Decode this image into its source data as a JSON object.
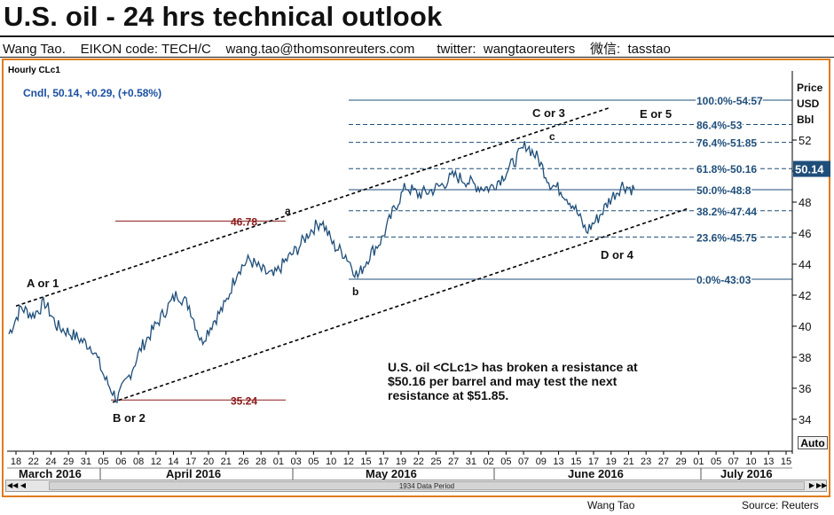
{
  "header": {
    "title": "U.S. oil - 24 hrs technical outlook",
    "author": "Wang Tao.",
    "eikon": "EIKON code: TECH/C",
    "email": "wang.tao@thomsonreuters.com",
    "twitter": "twitter:  wangtaoreuters",
    "weixin": "微信:  tasstao"
  },
  "panel": {
    "title": "Hourly CLc1",
    "legend": "Cndl, 50.14, +0.29, (+0.58%)",
    "price_axis_title": [
      "Price",
      "USD",
      "Bbl"
    ],
    "current_price_label": "50.14",
    "auto_button": "Auto",
    "data_period": "1934 Data Period"
  },
  "chart_data": {
    "type": "line",
    "ylim": [
      32.5,
      58
    ],
    "current_price": 50.14,
    "y_ticks": [
      34,
      36,
      38,
      40,
      42,
      44,
      46,
      48,
      50,
      52
    ],
    "y_tick_labels": [
      "34",
      "36",
      "38",
      "40",
      "42",
      "44",
      "46",
      "48",
      "50",
      "52"
    ],
    "x_tick_labels": [
      "18",
      "22",
      "24",
      "29",
      "31",
      "05",
      "06",
      "08",
      "12",
      "14",
      "17",
      "20",
      "21",
      "26",
      "28",
      "01",
      "03",
      "05",
      "10",
      "12",
      "15",
      "17",
      "19",
      "22",
      "25",
      "27",
      "31",
      "02",
      "05",
      "07",
      "09",
      "13",
      "15",
      "17",
      "19",
      "21",
      "23",
      "27",
      "29",
      "01",
      "05",
      "07",
      "10",
      "13",
      "15"
    ],
    "months": [
      "March 2016",
      "April 2016",
      "May 2016",
      "June 2016",
      "July 2016"
    ],
    "fib_levels": [
      {
        "label": "100.0%-54.57",
        "value": 54.57
      },
      {
        "label": "86.4%-53",
        "value": 53
      },
      {
        "label": "76.4%-51.85",
        "value": 51.85
      },
      {
        "label": "61.8%-50.16",
        "value": 50.16
      },
      {
        "label": "50.0%-48.8",
        "value": 48.8
      },
      {
        "label": "38.2%-47.44",
        "value": 47.44
      },
      {
        "label": "23.6%-45.75",
        "value": 45.75
      },
      {
        "label": "0.0%-43.03",
        "value": 43.03
      }
    ],
    "levels": [
      {
        "label": "46.78",
        "value": 46.78
      },
      {
        "label": "35.24",
        "value": 35.24
      }
    ],
    "wave_labels": [
      "A or 1",
      "B or 2",
      "a",
      "b",
      "c",
      "C or 3",
      "D or 4",
      "E or 5"
    ],
    "series": [
      {
        "values": [
          39.5,
          41.2,
          40.7,
          41.5,
          40.0,
          39.6,
          39.1,
          38.6,
          36.6,
          35.3,
          36.8,
          38.6,
          39.8,
          41.0,
          42.1,
          41.3,
          39.0,
          40.3,
          41.4,
          43.6,
          44.3,
          43.6,
          43.2,
          44.2,
          45.0,
          46.1,
          46.8,
          45.2,
          44.6,
          43.2,
          44.6,
          45.6,
          47.5,
          49.0,
          48.5,
          48.7,
          49.1,
          49.7,
          49.4,
          49.0,
          48.9,
          49.6,
          50.6,
          51.7,
          50.8,
          49.2,
          48.7,
          47.7,
          46.1,
          47.0,
          48.2,
          49.1,
          48.8
        ]
      }
    ],
    "annotation": "U.S. oil <CLc1> has broken a resistance at $50.16 per barrel and may test the next resistance at $51.85."
  },
  "footer": {
    "author": "Wang Tao",
    "source": "Source: Reuters"
  }
}
